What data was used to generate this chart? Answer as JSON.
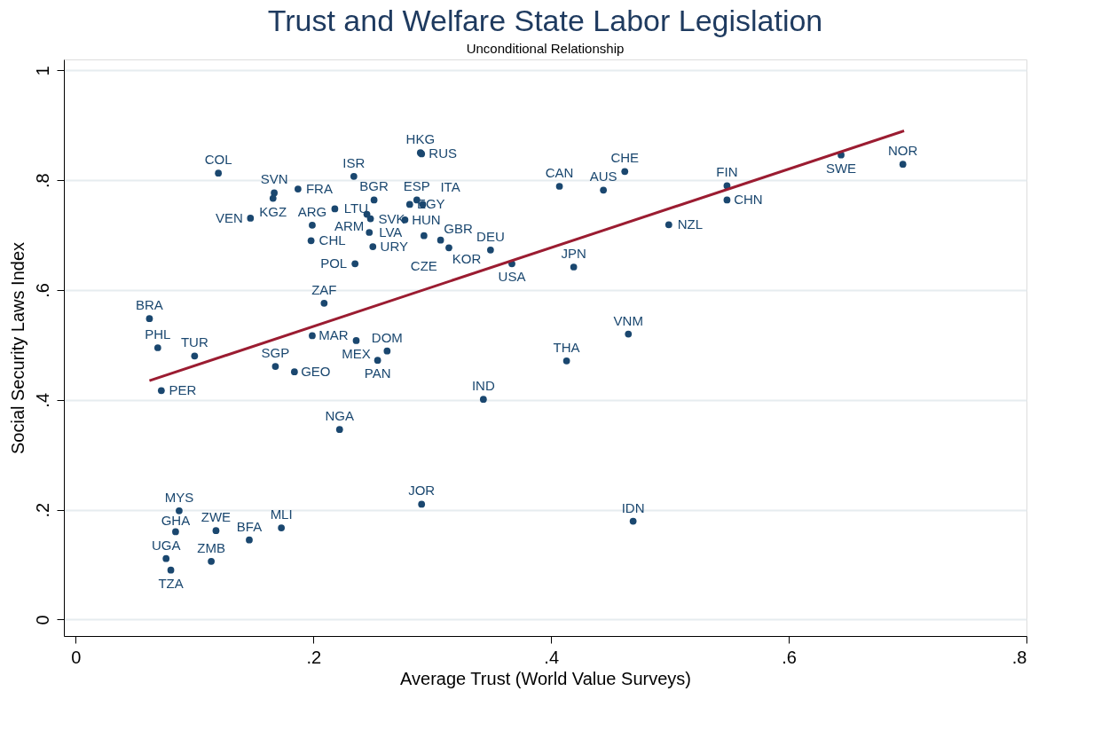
{
  "chart_data": {
    "type": "scatter",
    "title": "Trust and Welfare State Labor Legislation",
    "subtitle": "Unconditional Relationship",
    "xlabel": "Average Trust (World Value Surveys)",
    "ylabel": "Social Security Laws Index",
    "xlim": [
      -0.01,
      0.8
    ],
    "ylim": [
      -0.03,
      1.02
    ],
    "xticks": [
      {
        "value": 0,
        "label": "0"
      },
      {
        "value": 0.2,
        "label": ".2"
      },
      {
        "value": 0.4,
        "label": ".4"
      },
      {
        "value": 0.6,
        "label": ".6"
      },
      {
        "value": 0.8,
        "label": ".8"
      }
    ],
    "yticks": [
      {
        "value": 0,
        "label": "0"
      },
      {
        "value": 0.2,
        "label": ".2"
      },
      {
        "value": 0.4,
        "label": ".4"
      },
      {
        "value": 0.6,
        "label": ".6"
      },
      {
        "value": 0.8,
        "label": ".8"
      },
      {
        "value": 1,
        "label": "1"
      }
    ],
    "grid": "y",
    "series": [
      {
        "marker": "circle",
        "color": "#1a476f",
        "x": [
          0.12,
          0.167,
          0.166,
          0.187,
          0.147,
          0.199,
          0.198,
          0.218,
          0.234,
          0.29,
          0.291,
          0.251,
          0.245,
          0.248,
          0.247,
          0.25,
          0.235,
          0.277,
          0.287,
          0.281,
          0.292,
          0.293,
          0.307,
          0.314,
          0.349,
          0.367,
          0.407,
          0.444,
          0.462,
          0.419,
          0.499,
          0.548,
          0.548,
          0.644,
          0.696,
          0.209,
          0.199,
          0.236,
          0.262,
          0.254,
          0.168,
          0.184,
          0.222,
          0.062,
          0.069,
          0.1,
          0.072,
          0.343,
          0.413,
          0.465,
          0.469,
          0.291,
          0.087,
          0.084,
          0.118,
          0.146,
          0.173,
          0.076,
          0.114,
          0.08
        ],
        "values": [
          0.813,
          0.777,
          0.767,
          0.784,
          0.731,
          0.718,
          0.69,
          0.748,
          0.807,
          0.85,
          0.848,
          0.764,
          0.738,
          0.73,
          0.705,
          0.679,
          0.648,
          0.728,
          0.764,
          0.756,
          0.756,
          0.699,
          0.691,
          0.677,
          0.673,
          0.648,
          0.789,
          0.782,
          0.816,
          0.642,
          0.719,
          0.79,
          0.764,
          0.846,
          0.829,
          0.576,
          0.517,
          0.508,
          0.489,
          0.472,
          0.461,
          0.451,
          0.346,
          0.548,
          0.495,
          0.48,
          0.417,
          0.401,
          0.471,
          0.52,
          0.179,
          0.21,
          0.198,
          0.16,
          0.162,
          0.145,
          0.167,
          0.111,
          0.106,
          0.09
        ],
        "value_labels": [
          "COL",
          "SVN",
          "KGZ",
          "FRA",
          "VEN",
          "ARG",
          "CHL",
          "LTU",
          "ISR",
          "HKG",
          "RUS",
          "BGR",
          "ARM",
          "SVK",
          "LVA",
          "URY",
          "POL",
          "HUN",
          "ESP",
          "EGY",
          "ITA",
          "CZE",
          "GBR",
          "KOR",
          "DEU",
          "USA",
          "CAN",
          "AUS",
          "CHE",
          "JPN",
          "NZL",
          "FIN",
          "CHN",
          "SWE",
          "NOR",
          "ZAF",
          "MAR",
          "MEX",
          "DOM",
          "PAN",
          "SGP",
          "GEO",
          "NGA",
          "BRA",
          "PHL",
          "TUR",
          "PER",
          "IND",
          "THA",
          "VNM",
          "IDN",
          "JOR",
          "MYS",
          "GHA",
          "ZWE",
          "BFA",
          "MLI",
          "UGA",
          "ZMB",
          "TZA"
        ]
      },
      {
        "type": "line",
        "color": "#9b1c31",
        "x": [
          0.062,
          0.697
        ],
        "values": [
          0.435,
          0.89
        ]
      }
    ]
  }
}
